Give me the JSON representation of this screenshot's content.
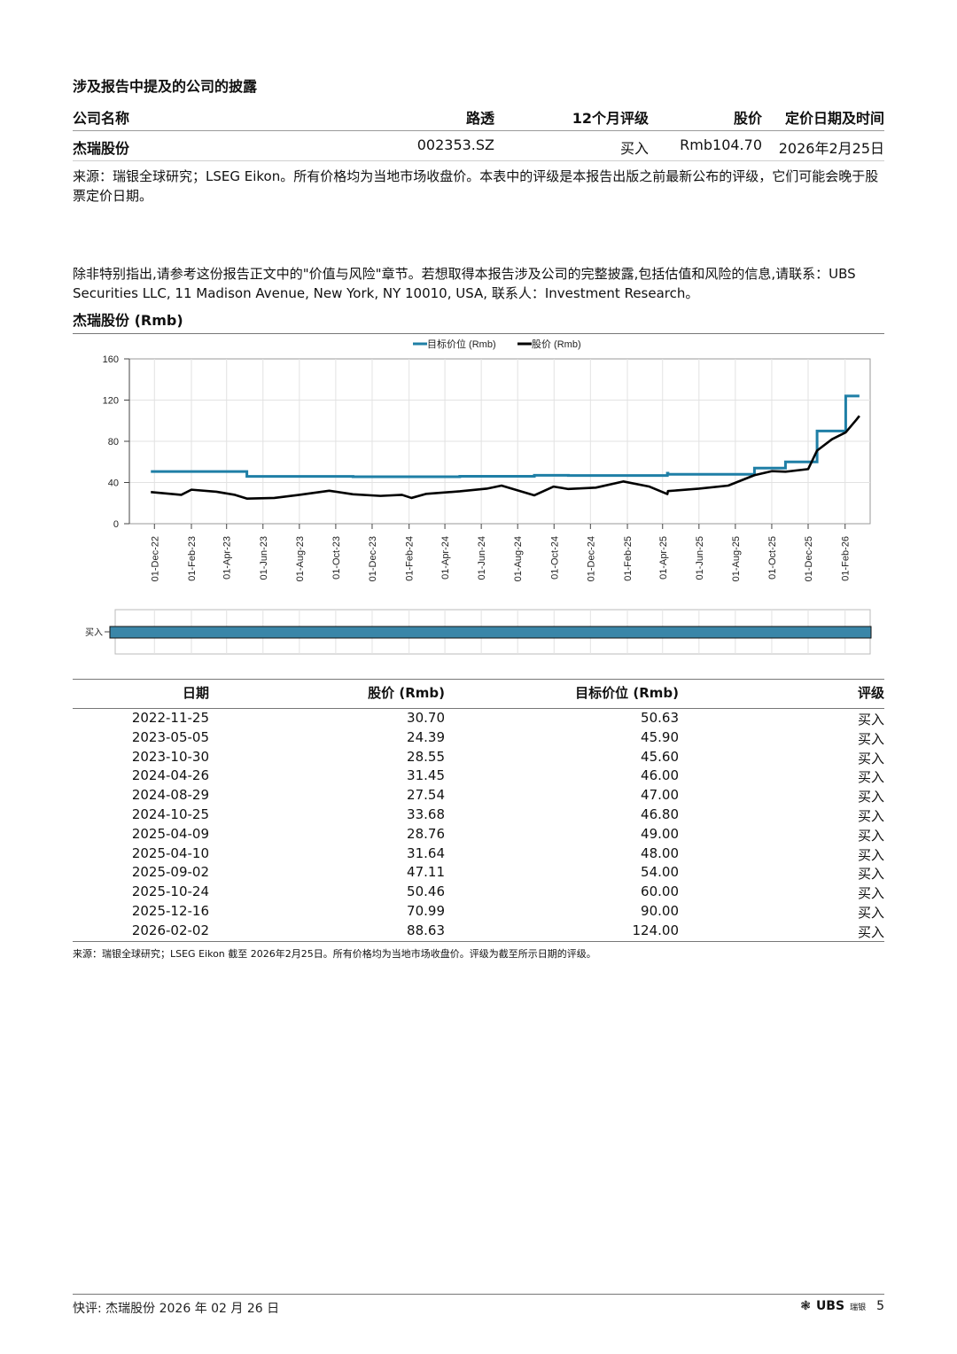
{
  "disclosure": {
    "title": "涉及报告中提及的公司的披露",
    "headers": [
      "公司名称",
      "路透",
      "12个月评级",
      "股价",
      "定价日期及时间"
    ],
    "rows": [
      [
        "杰瑞股份",
        "002353.SZ",
        "买入",
        "Rmb104.70",
        "2026年2月25日"
      ]
    ],
    "source": "来源：瑞银全球研究；LSEG Eikon。所有价格均为当地市场收盘价。本表中的评级是本报告出版之前最新公布的评级，它们可能会晚于股票定价日期。"
  },
  "note": "除非特别指出,请参考这份报告正文中的\"价值与风险\"章节。若想取得本报告涉及公司的完整披露,包括估值和风险的信息,请联系：UBS Securities LLC, 11 Madison Avenue, New York, NY 10010, USA, 联系人：Investment Research。",
  "chart_title": "杰瑞股份 (Rmb)",
  "chart_data": {
    "type": "line",
    "legend": [
      "目标价位 (Rmb)",
      "股价 (Rmb)"
    ],
    "legend_position": "top",
    "series": [
      {
        "name": "目标价位 (Rmb)",
        "color": "#1f7fa6",
        "step": true,
        "points": [
          [
            "2022-11-25",
            50.63
          ],
          [
            "2023-05-05",
            45.9
          ],
          [
            "2023-10-30",
            45.6
          ],
          [
            "2024-04-26",
            46.0
          ],
          [
            "2024-08-29",
            47.0
          ],
          [
            "2024-10-25",
            46.8
          ],
          [
            "2025-04-09",
            49.0
          ],
          [
            "2025-04-10",
            48.0
          ],
          [
            "2025-09-02",
            54.0
          ],
          [
            "2025-10-24",
            60.0
          ],
          [
            "2025-12-16",
            90.0
          ],
          [
            "2026-02-02",
            124.0
          ],
          [
            "2026-02-25",
            124.0
          ]
        ]
      },
      {
        "name": "股价 (Rmb)",
        "color": "#000000",
        "points": [
          [
            "2022-11-25",
            30.7
          ],
          [
            "2023-01-15",
            28
          ],
          [
            "2023-02-01",
            33
          ],
          [
            "2023-03-15",
            31
          ],
          [
            "2023-04-15",
            28
          ],
          [
            "2023-05-05",
            24.39
          ],
          [
            "2023-06-20",
            25
          ],
          [
            "2023-08-01",
            28
          ],
          [
            "2023-09-20",
            32
          ],
          [
            "2023-10-30",
            28.55
          ],
          [
            "2023-12-15",
            27
          ],
          [
            "2024-01-20",
            28
          ],
          [
            "2024-02-05",
            25
          ],
          [
            "2024-03-01",
            29
          ],
          [
            "2024-04-26",
            31.45
          ],
          [
            "2024-06-10",
            34
          ],
          [
            "2024-07-05",
            37
          ],
          [
            "2024-08-29",
            27.54
          ],
          [
            "2024-09-30",
            36
          ],
          [
            "2024-10-25",
            33.68
          ],
          [
            "2024-12-10",
            35
          ],
          [
            "2025-01-25",
            41
          ],
          [
            "2025-03-10",
            36
          ],
          [
            "2025-04-09",
            28.76
          ],
          [
            "2025-04-10",
            31.64
          ],
          [
            "2025-06-01",
            34
          ],
          [
            "2025-07-20",
            37
          ],
          [
            "2025-09-02",
            47.11
          ],
          [
            "2025-10-01",
            51
          ],
          [
            "2025-10-24",
            50.46
          ],
          [
            "2025-12-01",
            53
          ],
          [
            "2025-12-16",
            70.99
          ],
          [
            "2026-01-10",
            82
          ],
          [
            "2026-02-02",
            88.63
          ],
          [
            "2026-02-20",
            101
          ],
          [
            "2026-02-25",
            104.7
          ]
        ]
      }
    ],
    "ylim": [
      0,
      160
    ],
    "yticks": [
      0,
      40,
      80,
      120,
      160
    ],
    "xrange": [
      "2022-10-20",
      "2026-03-15"
    ],
    "xticks": [
      "01-Dec-22",
      "01-Feb-23",
      "01-Apr-23",
      "01-Jun-23",
      "01-Aug-23",
      "01-Oct-23",
      "01-Dec-23",
      "01-Feb-24",
      "01-Apr-24",
      "01-Jun-24",
      "01-Aug-24",
      "01-Oct-24",
      "01-Dec-24",
      "01-Feb-25",
      "01-Apr-25",
      "01-Jun-25",
      "01-Aug-25",
      "01-Oct-25",
      "01-Dec-25",
      "01-Feb-26"
    ],
    "grid": true,
    "rating_band": {
      "label": "买入",
      "from": "2022-11-25",
      "to": "2026-02-25",
      "color": "#3a86a8"
    }
  },
  "history": {
    "headers": [
      "日期",
      "股价 (Rmb)",
      "目标价位 (Rmb)",
      "评级"
    ],
    "rows": [
      [
        "2022-11-25",
        "30.70",
        "50.63",
        "买入"
      ],
      [
        "2023-05-05",
        "24.39",
        "45.90",
        "买入"
      ],
      [
        "2023-10-30",
        "28.55",
        "45.60",
        "买入"
      ],
      [
        "2024-04-26",
        "31.45",
        "46.00",
        "买入"
      ],
      [
        "2024-08-29",
        "27.54",
        "47.00",
        "买入"
      ],
      [
        "2024-10-25",
        "33.68",
        "46.80",
        "买入"
      ],
      [
        "2025-04-09",
        "28.76",
        "49.00",
        "买入"
      ],
      [
        "2025-04-10",
        "31.64",
        "48.00",
        "买入"
      ],
      [
        "2025-09-02",
        "47.11",
        "54.00",
        "买入"
      ],
      [
        "2025-10-24",
        "50.46",
        "60.00",
        "买入"
      ],
      [
        "2025-12-16",
        "70.99",
        "90.00",
        "买入"
      ],
      [
        "2026-02-02",
        "88.63",
        "124.00",
        "买入"
      ]
    ],
    "source": "来源：瑞银全球研究；LSEG Eikon 截至 2026年2月25日。所有价格均为当地市场收盘价。评级为截至所示日期的评级。"
  },
  "footer": {
    "left": "快评: 杰瑞股份  2026 年 02 月 26 日",
    "logo": "UBS",
    "logo_small": "瑞银",
    "page": "5"
  }
}
